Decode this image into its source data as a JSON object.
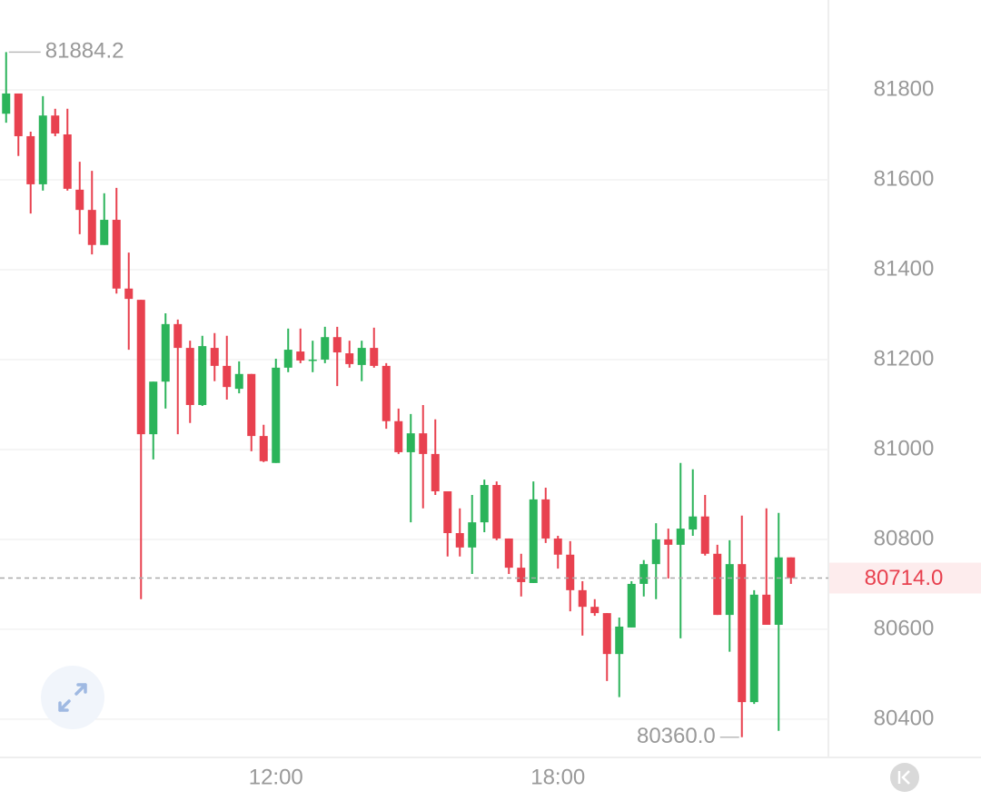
{
  "chart_data": {
    "type": "candlestick",
    "categories": [
      null,
      null,
      null,
      null,
      null,
      null,
      null,
      null,
      null,
      null,
      null,
      null,
      null,
      null,
      null,
      null,
      null,
      null,
      null,
      null,
      null,
      null,
      "12:00",
      null,
      null,
      null,
      null,
      null,
      null,
      null,
      null,
      null,
      null,
      null,
      null,
      null,
      null,
      null,
      null,
      null,
      null,
      null,
      null,
      null,
      null,
      "18:00",
      null,
      null,
      null,
      null,
      null,
      null,
      null,
      null,
      null,
      null,
      null,
      null,
      null,
      null,
      null,
      null,
      null,
      null,
      null
    ],
    "open": [
      81747,
      81792,
      81697,
      81590,
      81743,
      81701,
      81578,
      81533,
      81455,
      81511,
      81358,
      81333,
      81034,
      81151,
      81279,
      81226,
      81099,
      81226,
      81186,
      81135,
      81168,
      81030,
      80970,
      81182,
      81218,
      81198,
      81200,
      81250,
      81214,
      81188,
      81226,
      81186,
      81063,
      80994,
      81036,
      80990,
      80907,
      80814,
      80782,
      80838,
      80921,
      80802,
      80737,
      80703,
      80889,
      80802,
      80766,
      80687,
      80650,
      80636,
      80545,
      80604,
      80701,
      80745,
      80800,
      80788,
      80822,
      80851,
      80768,
      80632,
      80745,
      80438,
      80677,
      80610,
      80760
    ],
    "high": [
      81884.2,
      81792,
      81707,
      81786,
      81758,
      81758,
      81640,
      81620,
      81570,
      81582,
      81438,
      81333,
      81151,
      81303,
      81289,
      81242,
      81253,
      81259,
      81253,
      81196,
      81168,
      81055,
      81202,
      81269,
      81269,
      81242,
      81273,
      81273,
      81242,
      81242,
      81271,
      81192,
      81091,
      81079,
      81099,
      81067,
      80907,
      80869,
      80899,
      80933,
      80929,
      80802,
      80768,
      80929,
      80915,
      80808,
      80796,
      80707,
      80667,
      80636,
      80626,
      80707,
      80754,
      80836,
      80824,
      80970,
      80956,
      80899,
      80788,
      80798,
      80853,
      80687,
      80869,
      80859,
      80760
    ],
    "low": [
      81727,
      81653,
      81525,
      81576,
      81697,
      81576,
      81479,
      81434,
      81455,
      81347,
      81222,
      80667,
      80978,
      81091,
      81034,
      81059,
      81097,
      81152,
      81111,
      81125,
      80996,
      80972,
      80970,
      81172,
      81192,
      81172,
      81192,
      81141,
      81182,
      81152,
      81182,
      81046,
      80990,
      80838,
      80869,
      80899,
      80762,
      80762,
      80723,
      80816,
      80798,
      80723,
      80673,
      80703,
      80792,
      80735,
      80640,
      80586,
      80630,
      80485,
      80449,
      80604,
      80673,
      80667,
      80713,
      80580,
      80808,
      80764,
      80632,
      80550,
      80360,
      80434,
      80610,
      80374,
      80701
    ],
    "close": [
      81792,
      81697,
      81590,
      81743,
      81703,
      81580,
      81533,
      81455,
      81511,
      81358,
      81335,
      81034,
      81151,
      81279,
      81226,
      81099,
      81230,
      81186,
      81139,
      81168,
      81030,
      80974,
      81182,
      81222,
      81198,
      81200,
      81250,
      81216,
      81190,
      81226,
      81186,
      81063,
      80994,
      81036,
      80990,
      80907,
      80814,
      80782,
      80838,
      80921,
      80802,
      80737,
      80705,
      80889,
      80802,
      80766,
      80687,
      80650,
      80636,
      80545,
      80606,
      80701,
      80745,
      80800,
      80788,
      80824,
      80851,
      80768,
      80632,
      80745,
      80438,
      80677,
      80610,
      80760,
      80714
    ],
    "up_color": "#2bb45a",
    "down_color": "#e8414f",
    "ylim": [
      80317,
      82000
    ],
    "yticks": [
      80400,
      80600,
      80800,
      81000,
      81200,
      81400,
      81600,
      81800
    ],
    "grid": true,
    "high_marker": 81884.2,
    "low_marker": {
      "value": 80360,
      "label": "80360.0"
    },
    "last_price": {
      "value": 80714,
      "label": "80714.0"
    }
  }
}
